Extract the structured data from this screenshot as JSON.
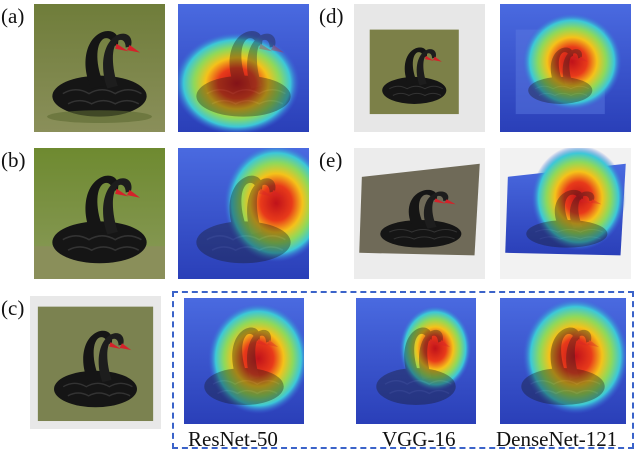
{
  "panel_labels": {
    "a": "(a)",
    "b": "(b)",
    "c": "(c)",
    "d": "(d)",
    "e": "(e)"
  },
  "captions": {
    "resnet": "ResNet-50",
    "vgg": "VGG-16",
    "densenet": "DenseNet-121"
  },
  "colors": {
    "dashed_box": "#3b63c9",
    "swan_body": "#1a1a1a",
    "beak": "#d4222a",
    "water": "#7a8a55"
  }
}
